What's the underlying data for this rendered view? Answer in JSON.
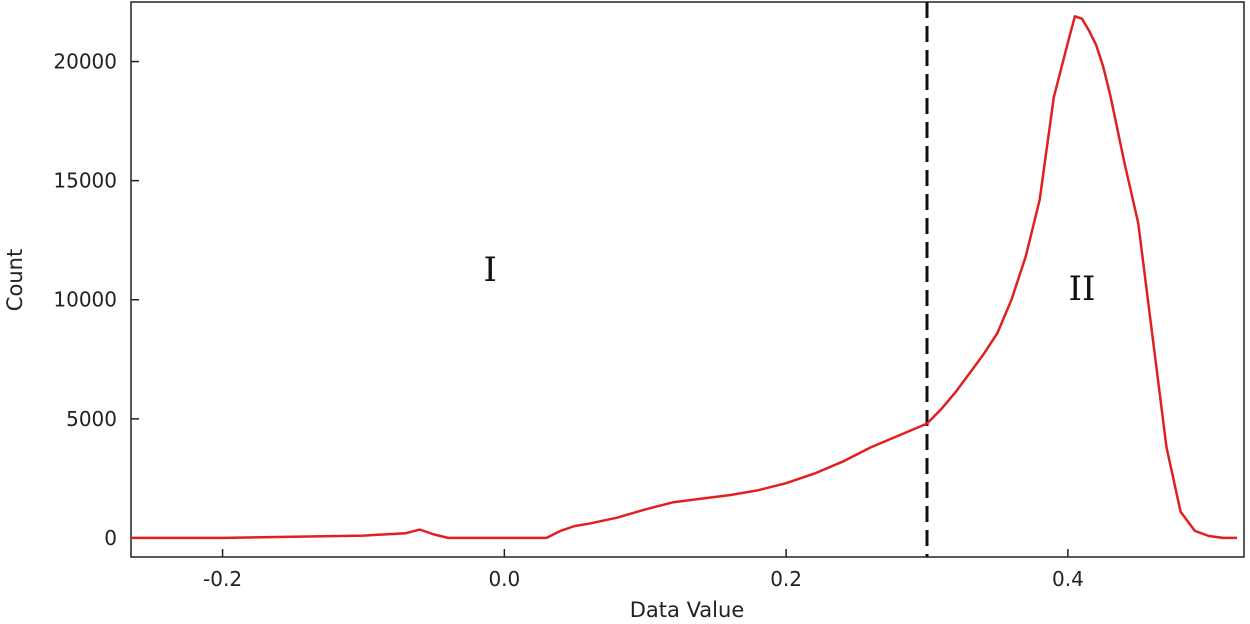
{
  "chart_data": {
    "type": "line",
    "title": "",
    "xlabel": "Data Value",
    "ylabel": "Count",
    "xlim": [
      -0.265,
      0.525
    ],
    "ylim": [
      -800,
      22500
    ],
    "xticks": [
      -0.2,
      0.0,
      0.2,
      0.4
    ],
    "xtick_labels": [
      "-0.2",
      "0.0",
      "0.2",
      "0.4"
    ],
    "yticks": [
      0,
      5000,
      10000,
      15000,
      20000
    ],
    "ytick_labels": [
      "0",
      "5000",
      "10000",
      "15000",
      "20000"
    ],
    "grid": false,
    "legend": "none",
    "threshold": {
      "x": 0.3,
      "style": "dashed",
      "color": "#111111"
    },
    "annotations": [
      {
        "text": "I",
        "x": -0.01,
        "y": 11300
      },
      {
        "text": "II",
        "x": 0.41,
        "y": 10500
      }
    ],
    "series": [
      {
        "color": "#e02020",
        "x": [
          -0.265,
          -0.2,
          -0.15,
          -0.1,
          -0.07,
          -0.06,
          -0.055,
          -0.05,
          -0.04,
          -0.03,
          -0.02,
          0.0,
          0.02,
          0.03,
          0.04,
          0.05,
          0.06,
          0.08,
          0.1,
          0.12,
          0.14,
          0.16,
          0.18,
          0.2,
          0.22,
          0.24,
          0.26,
          0.28,
          0.3,
          0.31,
          0.32,
          0.33,
          0.34,
          0.35,
          0.36,
          0.37,
          0.38,
          0.39,
          0.4,
          0.405,
          0.41,
          0.415,
          0.42,
          0.425,
          0.43,
          0.44,
          0.45,
          0.46,
          0.47,
          0.48,
          0.49,
          0.5,
          0.51,
          0.52
        ],
        "y": [
          0,
          0,
          50,
          100,
          200,
          350,
          250,
          150,
          0,
          0,
          0,
          0,
          0,
          0,
          300,
          500,
          600,
          850,
          1200,
          1500,
          1650,
          1800,
          2000,
          2300,
          2700,
          3200,
          3800,
          4300,
          4800,
          5400,
          6100,
          6900,
          7700,
          8600,
          10000,
          11800,
          14200,
          18500,
          20800,
          21900,
          21800,
          21300,
          20700,
          19800,
          18600,
          15800,
          13200,
          8500,
          3800,
          1100,
          300,
          80,
          0,
          0
        ]
      }
    ]
  }
}
